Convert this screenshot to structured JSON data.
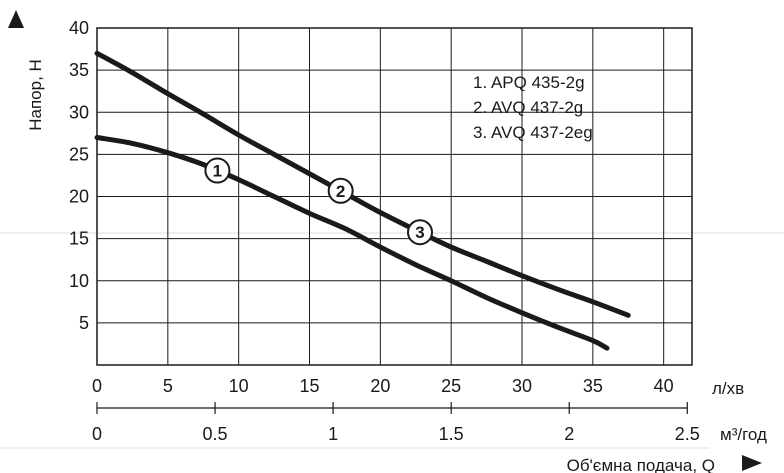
{
  "chart_data": {
    "type": "line",
    "ylabel": "Напор, Н",
    "xlabel": "Об'ємна подача, Q",
    "x_unit_primary": "л/хв",
    "x_unit_secondary": "м³/год",
    "xlim": [
      0,
      42
    ],
    "ylim": [
      0,
      40
    ],
    "y_ticks": [
      5,
      10,
      15,
      20,
      25,
      30,
      35,
      40
    ],
    "x_ticks": [
      0,
      5,
      10,
      15,
      20,
      25,
      30,
      35,
      40
    ],
    "x_ticks_secondary": [
      0,
      0.5,
      1,
      1.5,
      2,
      2.5
    ],
    "x_tick_labels_secondary": [
      "0",
      "0.5",
      "1",
      "1.5",
      "2",
      "2.5"
    ],
    "grid": true,
    "legend": [
      "1. APQ 435-2g",
      "2. AVQ 437-2g",
      "3. AVQ 437-2eg"
    ],
    "legend_placement": "top-right",
    "series": [
      {
        "marker_labels": [
          "1"
        ],
        "marker_x": [
          8.5
        ],
        "x": [
          0,
          2.5,
          5,
          7.5,
          10,
          12.5,
          15,
          17.5,
          20,
          22.5,
          25,
          27.5,
          30,
          32.5,
          35,
          36
        ],
        "values": [
          27,
          26.3,
          25.2,
          23.8,
          22,
          20,
          18,
          16.2,
          14,
          11.9,
          10,
          8,
          6.2,
          4.5,
          2.9,
          2
        ]
      },
      {
        "marker_labels": [
          "2",
          "3"
        ],
        "marker_x": [
          17.2,
          22.8
        ],
        "x": [
          0,
          2.5,
          5,
          7.5,
          10,
          12.5,
          15,
          17.5,
          20,
          22.5,
          25,
          27.5,
          30,
          32.5,
          35,
          37.5
        ],
        "values": [
          37,
          34.7,
          32.2,
          29.8,
          27.3,
          25,
          22.7,
          20.4,
          18.1,
          16,
          14,
          12.3,
          10.6,
          9,
          7.5,
          5.9
        ]
      }
    ]
  }
}
